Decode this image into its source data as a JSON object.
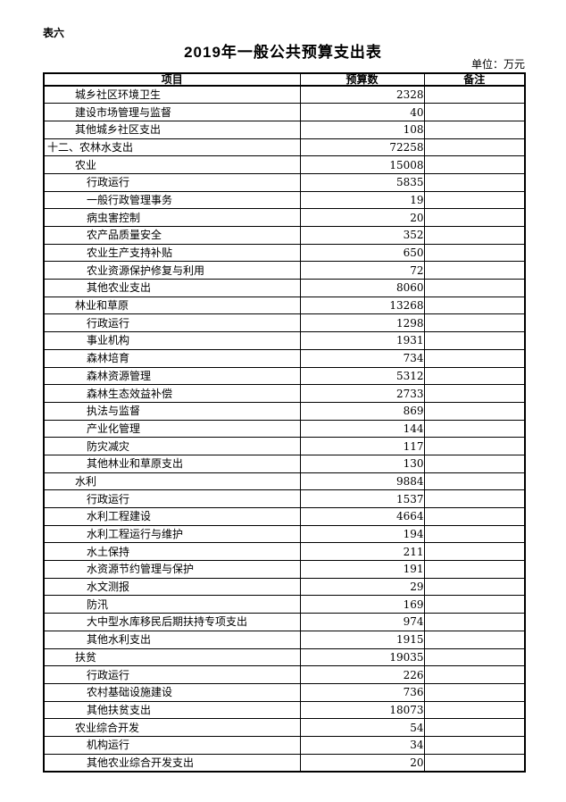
{
  "page": {
    "table_label": "表六",
    "title": "2019年一般公共预算支出表",
    "unit_label": "单位：万元"
  },
  "table": {
    "headers": [
      "项目",
      "预算数",
      "备注"
    ],
    "rows": [
      {
        "item": "城乡社区环境卫生",
        "budget": "2328",
        "remark": "",
        "indent": 1
      },
      {
        "item": "建设市场管理与监督",
        "budget": "40",
        "remark": "",
        "indent": 1
      },
      {
        "item": "其他城乡社区支出",
        "budget": "108",
        "remark": "",
        "indent": 1
      },
      {
        "item": "十二、农林水支出",
        "budget": "72258",
        "remark": "",
        "indent": 0
      },
      {
        "item": "农业",
        "budget": "15008",
        "remark": "",
        "indent": 1
      },
      {
        "item": "行政运行",
        "budget": "5835",
        "remark": "",
        "indent": 2
      },
      {
        "item": "一般行政管理事务",
        "budget": "19",
        "remark": "",
        "indent": 2
      },
      {
        "item": "病虫害控制",
        "budget": "20",
        "remark": "",
        "indent": 2
      },
      {
        "item": "农产品质量安全",
        "budget": "352",
        "remark": "",
        "indent": 2
      },
      {
        "item": "农业生产支持补贴",
        "budget": "650",
        "remark": "",
        "indent": 2
      },
      {
        "item": "农业资源保护修复与利用",
        "budget": "72",
        "remark": "",
        "indent": 2
      },
      {
        "item": "其他农业支出",
        "budget": "8060",
        "remark": "",
        "indent": 2
      },
      {
        "item": "林业和草原",
        "budget": "13268",
        "remark": "",
        "indent": 1
      },
      {
        "item": "行政运行",
        "budget": "1298",
        "remark": "",
        "indent": 2
      },
      {
        "item": "事业机构",
        "budget": "1931",
        "remark": "",
        "indent": 2
      },
      {
        "item": "森林培育",
        "budget": "734",
        "remark": "",
        "indent": 2
      },
      {
        "item": "森林资源管理",
        "budget": "5312",
        "remark": "",
        "indent": 2
      },
      {
        "item": "森林生态效益补偿",
        "budget": "2733",
        "remark": "",
        "indent": 2
      },
      {
        "item": "执法与监督",
        "budget": "869",
        "remark": "",
        "indent": 2
      },
      {
        "item": "产业化管理",
        "budget": "144",
        "remark": "",
        "indent": 2
      },
      {
        "item": "防灾减灾",
        "budget": "117",
        "remark": "",
        "indent": 2
      },
      {
        "item": "其他林业和草原支出",
        "budget": "130",
        "remark": "",
        "indent": 2
      },
      {
        "item": "水利",
        "budget": "9884",
        "remark": "",
        "indent": 1
      },
      {
        "item": "行政运行",
        "budget": "1537",
        "remark": "",
        "indent": 2
      },
      {
        "item": "水利工程建设",
        "budget": "4664",
        "remark": "",
        "indent": 2
      },
      {
        "item": "水利工程运行与维护",
        "budget": "194",
        "remark": "",
        "indent": 2
      },
      {
        "item": "水土保持",
        "budget": "211",
        "remark": "",
        "indent": 2
      },
      {
        "item": "水资源节约管理与保护",
        "budget": "191",
        "remark": "",
        "indent": 2
      },
      {
        "item": "水文测报",
        "budget": "29",
        "remark": "",
        "indent": 2
      },
      {
        "item": "防汛",
        "budget": "169",
        "remark": "",
        "indent": 2
      },
      {
        "item": "大中型水库移民后期扶持专项支出",
        "budget": "974",
        "remark": "",
        "indent": 2
      },
      {
        "item": "其他水利支出",
        "budget": "1915",
        "remark": "",
        "indent": 2
      },
      {
        "item": "扶贫",
        "budget": "19035",
        "remark": "",
        "indent": 1
      },
      {
        "item": "行政运行",
        "budget": "226",
        "remark": "",
        "indent": 2
      },
      {
        "item": "农村基础设施建设",
        "budget": "736",
        "remark": "",
        "indent": 2
      },
      {
        "item": "其他扶贫支出",
        "budget": "18073",
        "remark": "",
        "indent": 2
      },
      {
        "item": "农业综合开发",
        "budget": "54",
        "remark": "",
        "indent": 1
      },
      {
        "item": "机构运行",
        "budget": "34",
        "remark": "",
        "indent": 2
      },
      {
        "item": "其他农业综合开发支出",
        "budget": "20",
        "remark": "",
        "indent": 2
      }
    ]
  }
}
